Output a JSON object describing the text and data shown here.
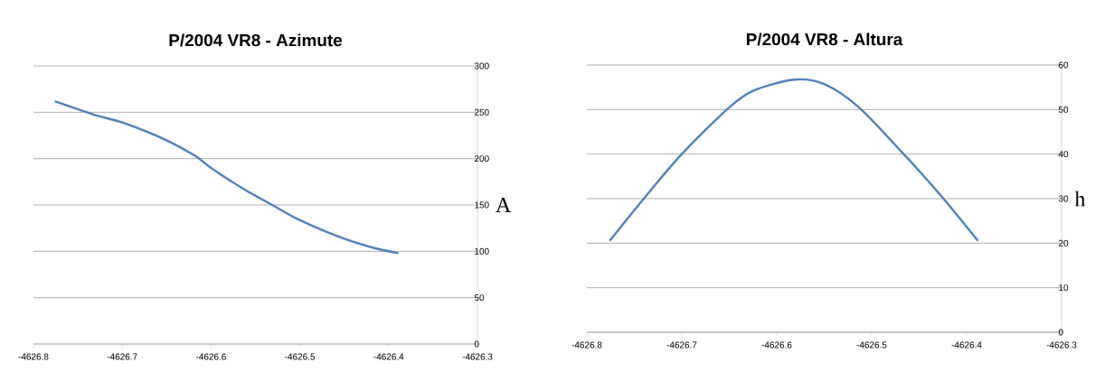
{
  "chart_data": [
    {
      "type": "line",
      "title": "P/2004 VR8 - Azimute",
      "ylabel": "A",
      "color": "#4f81bd",
      "grid": "y",
      "x": [
        -4626.776,
        -4626.727,
        -4626.7,
        -4626.654,
        -4626.618,
        -4626.6,
        -4626.563,
        -4626.531,
        -4626.501,
        -4626.454,
        -4626.418,
        -4626.389
      ],
      "values": [
        262,
        246,
        239,
        221.5,
        203,
        190,
        167,
        150,
        134,
        115,
        104,
        98
      ],
      "xlim": [
        -4626.8,
        -4626.3
      ],
      "xticks": [
        -4626.8,
        -4626.7,
        -4626.6,
        -4626.5,
        -4626.4,
        -4626.3
      ],
      "ylim": [
        0,
        300
      ],
      "yticks": [
        0,
        50,
        100,
        150,
        200,
        250,
        300
      ]
    },
    {
      "type": "line",
      "title": "P/2004 VR8 - Altura",
      "ylabel": "h",
      "color": "#4f81bd",
      "grid": "y",
      "x": [
        -4626.776,
        -4626.74,
        -4626.7,
        -4626.651,
        -4626.625,
        -4626.582,
        -4626.55,
        -4626.513,
        -4626.465,
        -4626.426,
        -4626.388
      ],
      "values": [
        20.5,
        30,
        40,
        50.3,
        54.2,
        56.7,
        55.7,
        50.4,
        39.7,
        30.4,
        20.5
      ],
      "xlim": [
        -4626.8,
        -4626.3
      ],
      "xticks": [
        -4626.8,
        -4626.7,
        -4626.6,
        -4626.5,
        -4626.4,
        -4626.3
      ],
      "ylim": [
        0,
        60
      ],
      "yticks": [
        0,
        10,
        20,
        30,
        40,
        50,
        60
      ]
    }
  ]
}
